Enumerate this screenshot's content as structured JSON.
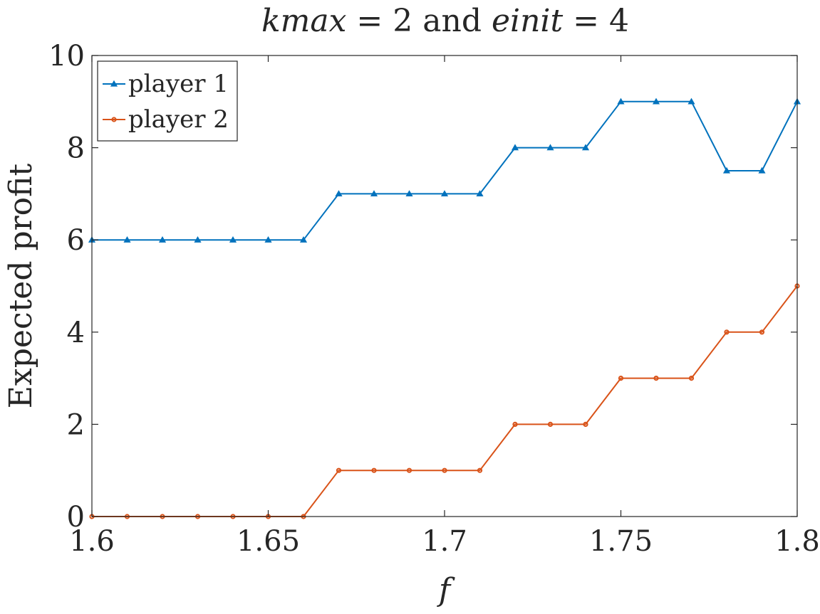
{
  "chart_data": {
    "type": "line",
    "title": {
      "part1": "kmax",
      "part2": " = 2 and ",
      "part3": "einit",
      "part4": " = 4"
    },
    "xlabel": "f",
    "ylabel": "Expected profit",
    "xlim": [
      1.6,
      1.8
    ],
    "ylim": [
      0,
      10
    ],
    "xticks": [
      1.6,
      1.65,
      1.7,
      1.75,
      1.8
    ],
    "xtick_labels": [
      "1.6",
      "1.65",
      "1.7",
      "1.75",
      "1.8"
    ],
    "yticks": [
      0,
      2,
      4,
      6,
      8,
      10
    ],
    "ytick_labels": [
      "0",
      "2",
      "4",
      "6",
      "8",
      "10"
    ],
    "grid": false,
    "legend_position": "top-left",
    "x": [
      1.6,
      1.61,
      1.62,
      1.63,
      1.64,
      1.65,
      1.66,
      1.67,
      1.68,
      1.69,
      1.7,
      1.71,
      1.72,
      1.73,
      1.74,
      1.75,
      1.76,
      1.77,
      1.78,
      1.79,
      1.8
    ],
    "series": [
      {
        "name": "player 1",
        "color": "#0072BD",
        "marker": "triangle",
        "values": [
          6,
          6,
          6,
          6,
          6,
          6,
          6,
          7,
          7,
          7,
          7,
          7,
          8,
          8,
          8,
          9,
          9,
          9,
          7.5,
          7.5,
          9
        ]
      },
      {
        "name": "player 2",
        "color": "#D95319",
        "marker": "circle",
        "values": [
          0,
          0,
          0,
          0,
          0,
          0,
          0,
          1,
          1,
          1,
          1,
          1,
          2,
          2,
          2,
          3,
          3,
          3,
          4,
          4,
          5
        ]
      }
    ]
  }
}
